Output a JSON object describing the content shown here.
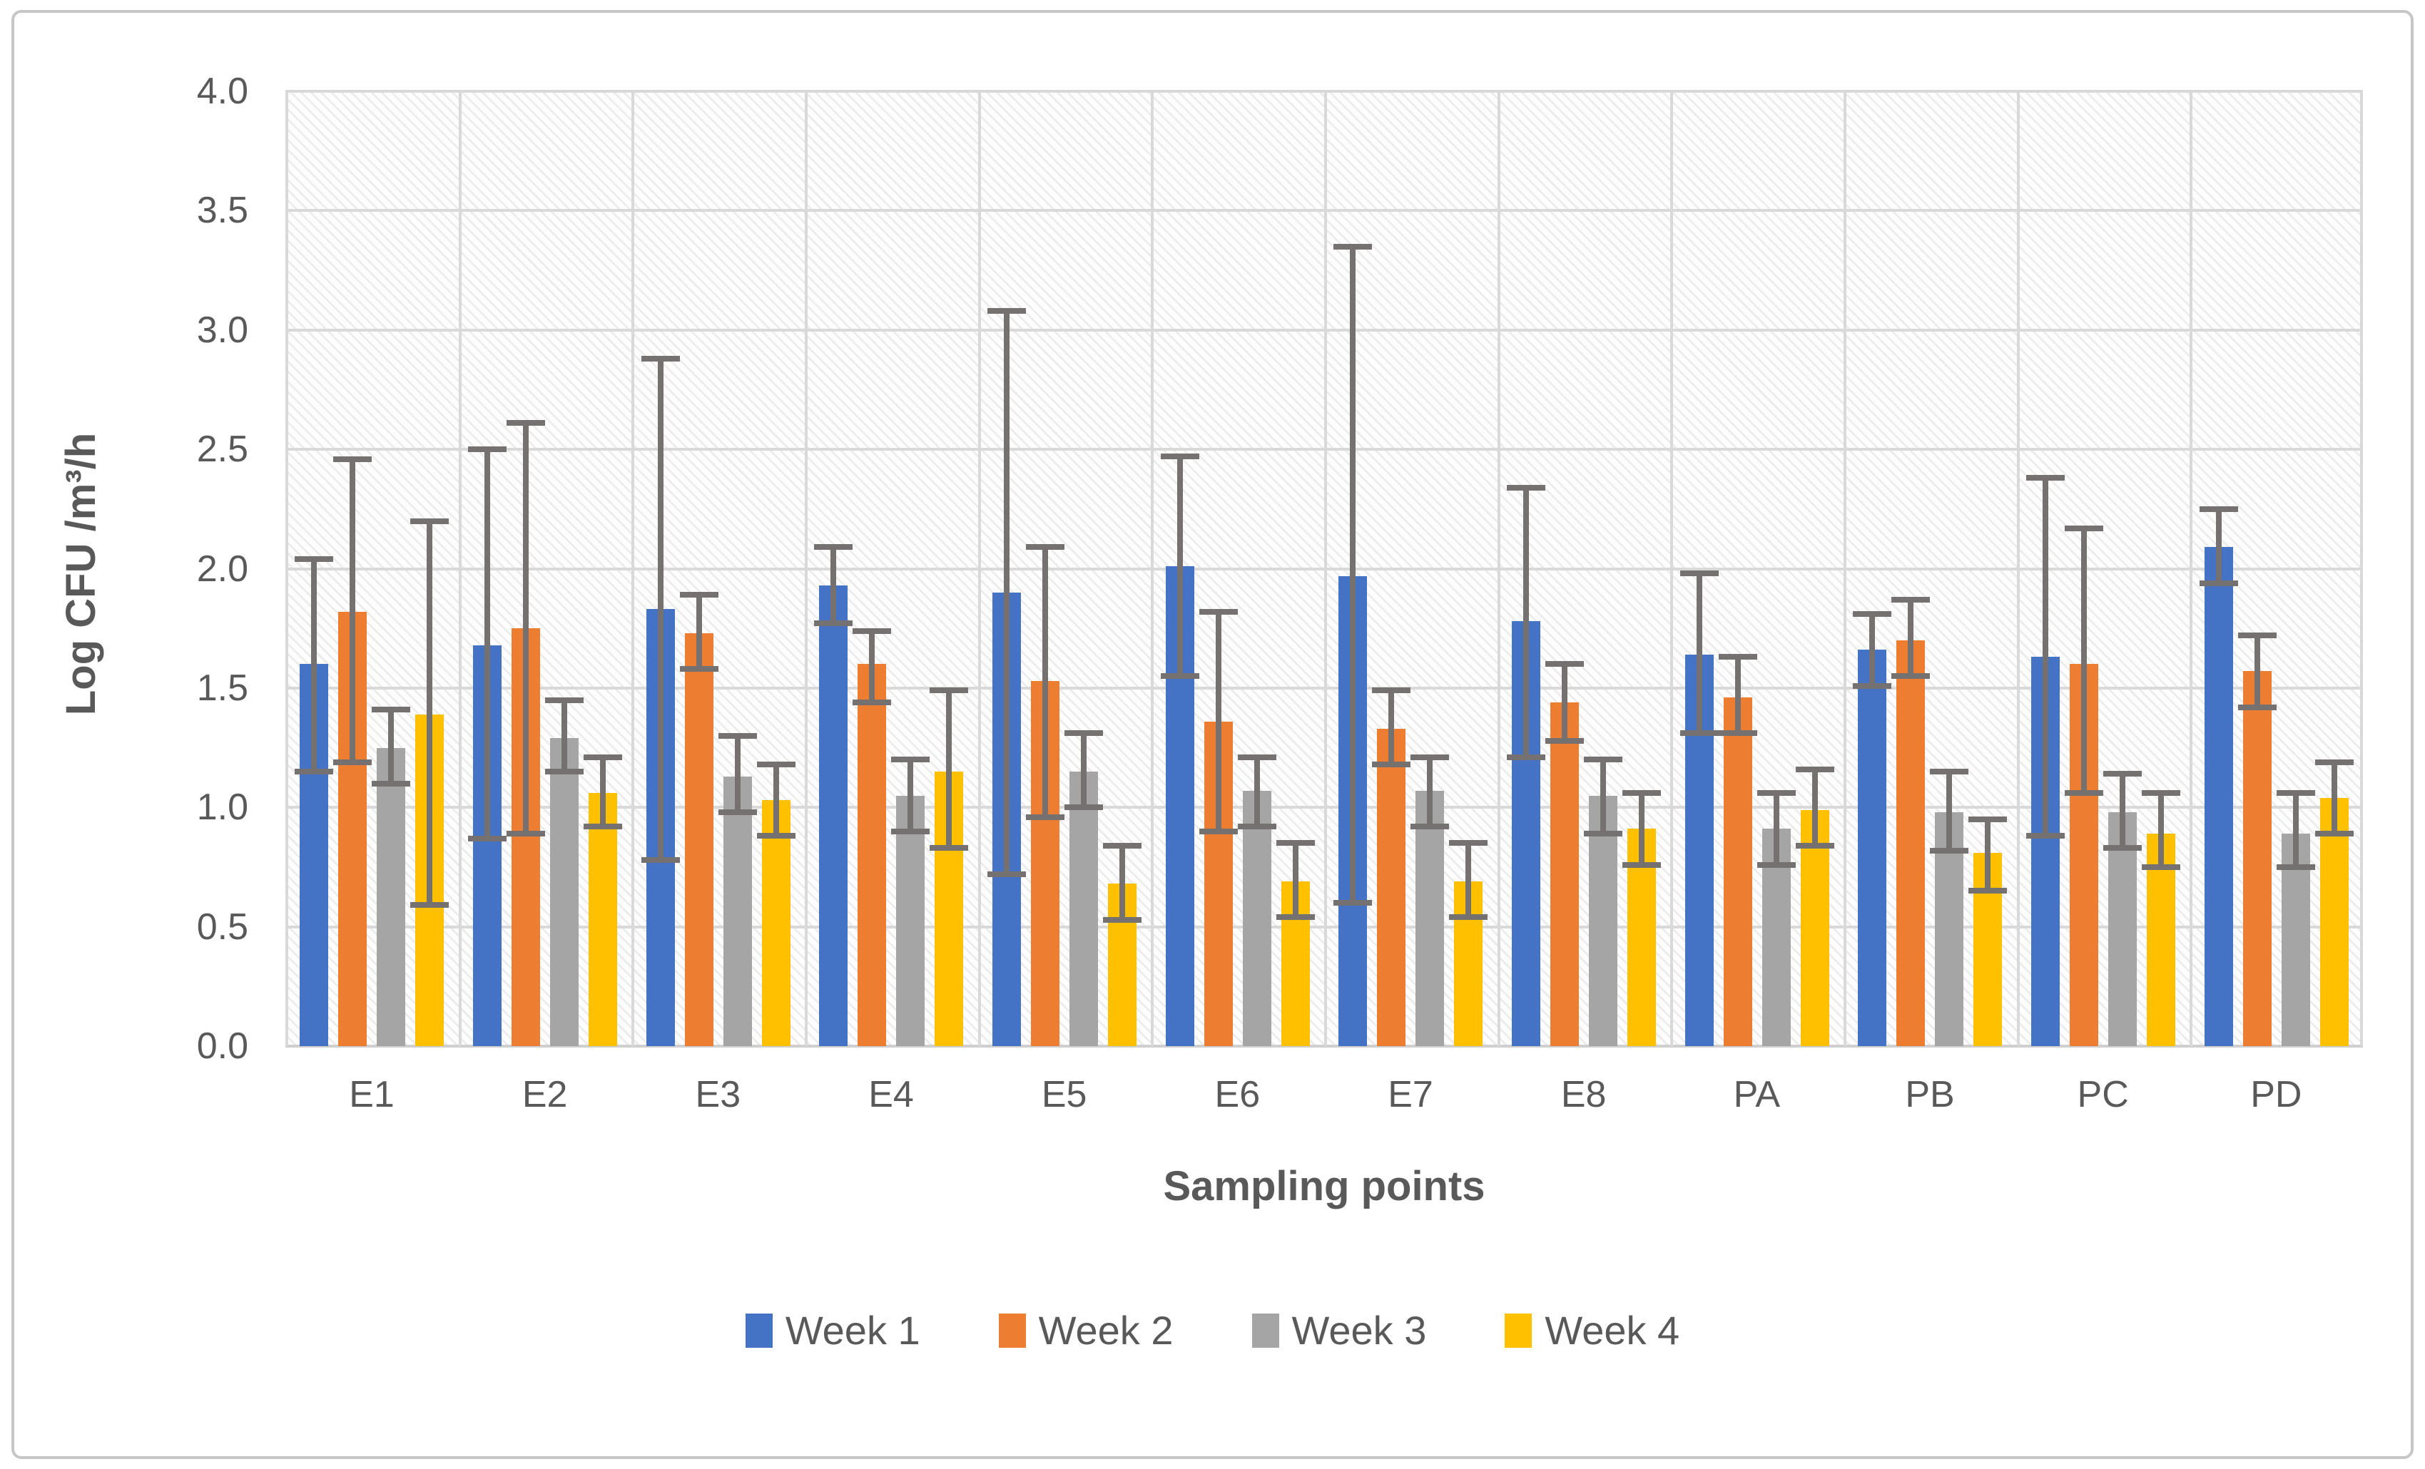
{
  "figure": {
    "background": "#ffffff",
    "border_color": "#c6c6c6"
  },
  "chart_data": {
    "type": "bar",
    "title": "",
    "xlabel": "Sampling points",
    "ylabel": "Log CFU /m³/h",
    "ylim": [
      0,
      4
    ],
    "ytick_step": 0.5,
    "ytick_labels": [
      "4.0",
      "3.5",
      "3.0",
      "2.5",
      "2.0",
      "1.5",
      "1.0",
      "0.5",
      "0.0"
    ],
    "grid": true,
    "plot_hatch": true,
    "gridline_color": "#d9d9d9",
    "error_bar_color": "#757171",
    "legend_position": "bottom",
    "categories": [
      "E1",
      "E2",
      "E3",
      "E4",
      "E5",
      "E6",
      "E7",
      "E8",
      "PA",
      "PB",
      "PC",
      "PD"
    ],
    "series": [
      {
        "name": "Week 1",
        "color": "#4472C4",
        "values": [
          1.6,
          1.68,
          1.83,
          1.93,
          1.9,
          2.01,
          1.97,
          1.78,
          1.64,
          1.66,
          1.63,
          2.09
        ],
        "err_lo": [
          1.15,
          0.87,
          0.78,
          1.77,
          0.72,
          1.55,
          0.6,
          1.21,
          1.31,
          1.51,
          0.88,
          1.94
        ],
        "err_hi": [
          2.04,
          2.5,
          2.88,
          2.09,
          3.08,
          2.47,
          3.35,
          2.34,
          1.98,
          1.81,
          2.38,
          2.25
        ]
      },
      {
        "name": "Week 2",
        "color": "#ED7D31",
        "values": [
          1.82,
          1.75,
          1.73,
          1.6,
          1.53,
          1.36,
          1.33,
          1.44,
          1.46,
          1.7,
          1.6,
          1.57
        ],
        "err_lo": [
          1.19,
          0.89,
          1.58,
          1.44,
          0.96,
          0.9,
          1.18,
          1.28,
          1.31,
          1.55,
          1.06,
          1.42
        ],
        "err_hi": [
          2.46,
          2.61,
          1.89,
          1.74,
          2.09,
          1.82,
          1.49,
          1.6,
          1.63,
          1.87,
          2.17,
          1.72
        ]
      },
      {
        "name": "Week 3",
        "color": "#A5A5A5",
        "values": [
          1.25,
          1.29,
          1.13,
          1.05,
          1.15,
          1.07,
          1.07,
          1.05,
          0.91,
          0.98,
          0.98,
          0.89
        ],
        "err_lo": [
          1.1,
          1.15,
          0.98,
          0.9,
          1.0,
          0.92,
          0.92,
          0.89,
          0.76,
          0.82,
          0.83,
          0.75
        ],
        "err_hi": [
          1.41,
          1.45,
          1.3,
          1.2,
          1.31,
          1.21,
          1.21,
          1.2,
          1.06,
          1.15,
          1.14,
          1.06
        ]
      },
      {
        "name": "Week 4",
        "color": "#FFC000",
        "values": [
          1.39,
          1.06,
          1.03,
          1.15,
          0.68,
          0.69,
          0.69,
          0.91,
          0.99,
          0.81,
          0.89,
          1.04
        ],
        "err_lo": [
          0.59,
          0.92,
          0.88,
          0.83,
          0.53,
          0.54,
          0.54,
          0.76,
          0.84,
          0.65,
          0.75,
          0.89
        ],
        "err_hi": [
          2.2,
          1.21,
          1.18,
          1.49,
          0.84,
          0.85,
          0.85,
          1.06,
          1.16,
          0.95,
          1.06,
          1.19
        ]
      }
    ]
  }
}
